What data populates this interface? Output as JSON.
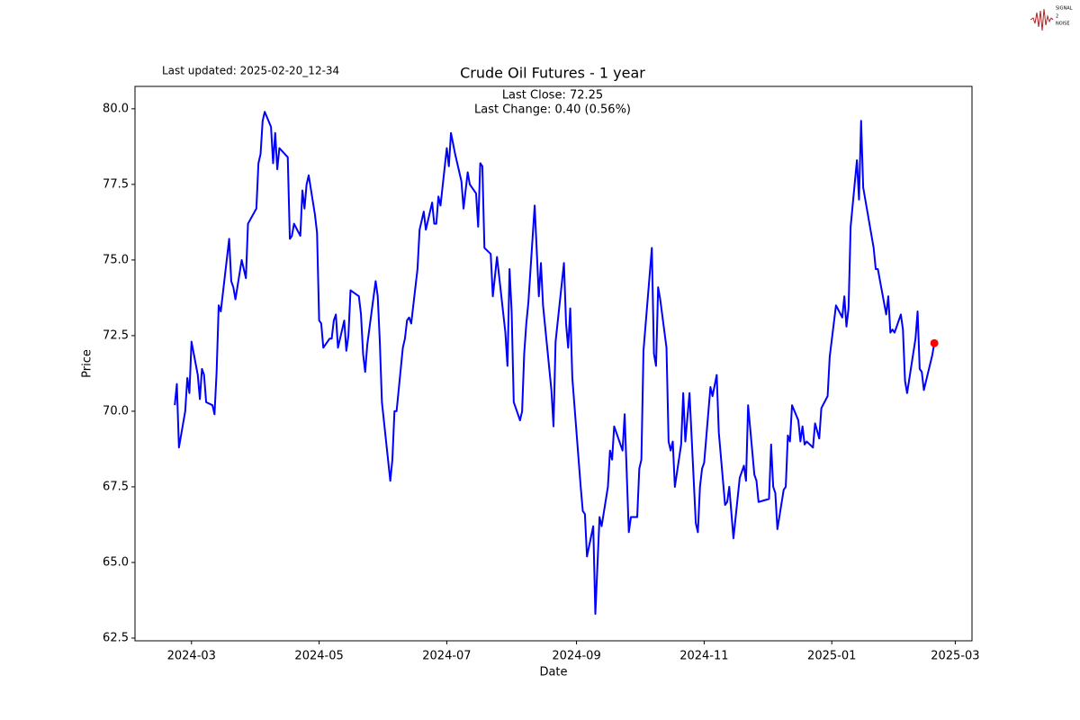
{
  "chart_data": {
    "type": "line",
    "title": "Crude Oil Futures - 1 year",
    "subtitle": "Last updated: 2025-02-20_12-34",
    "annotations": [
      "Last Close: 72.25",
      "Last Change: 0.40 (0.56%)"
    ],
    "x_label": "Date",
    "y_label": "Price",
    "color": "#0000ff",
    "last_point_color": "#ff0000",
    "grid": false,
    "x": [
      "2024-02-22",
      "2024-02-23",
      "2024-02-24",
      "2024-02-27",
      "2024-02-28",
      "2024-02-29",
      "2024-03-01",
      "2024-03-04",
      "2024-03-05",
      "2024-03-06",
      "2024-03-07",
      "2024-03-08",
      "2024-03-11",
      "2024-03-12",
      "2024-03-13",
      "2024-03-14",
      "2024-03-15",
      "2024-03-19",
      "2024-03-20",
      "2024-03-21",
      "2024-03-22",
      "2024-03-25",
      "2024-03-27",
      "2024-03-28",
      "2024-04-01",
      "2024-04-02",
      "2024-04-03",
      "2024-04-04",
      "2024-04-05",
      "2024-04-08",
      "2024-04-09",
      "2024-04-10",
      "2024-04-11",
      "2024-04-12",
      "2024-04-16",
      "2024-04-17",
      "2024-04-18",
      "2024-04-19",
      "2024-04-22",
      "2024-04-23",
      "2024-04-24",
      "2024-04-25",
      "2024-04-26",
      "2024-04-29",
      "2024-04-30",
      "2024-05-01",
      "2024-05-02",
      "2024-05-03",
      "2024-05-06",
      "2024-05-07",
      "2024-05-08",
      "2024-05-09",
      "2024-05-10",
      "2024-05-13",
      "2024-05-14",
      "2024-05-15",
      "2024-05-16",
      "2024-05-20",
      "2024-05-21",
      "2024-05-22",
      "2024-05-23",
      "2024-05-24",
      "2024-05-28",
      "2024-05-29",
      "2024-05-30",
      "2024-05-31",
      "2024-06-04",
      "2024-06-05",
      "2024-06-06",
      "2024-06-07",
      "2024-06-10",
      "2024-06-11",
      "2024-06-12",
      "2024-06-13",
      "2024-06-14",
      "2024-06-17",
      "2024-06-18",
      "2024-06-20",
      "2024-06-21",
      "2024-06-24",
      "2024-06-25",
      "2024-06-26",
      "2024-06-27",
      "2024-06-28",
      "2024-07-01",
      "2024-07-02",
      "2024-07-03",
      "2024-07-05",
      "2024-07-08",
      "2024-07-09",
      "2024-07-10",
      "2024-07-11",
      "2024-07-12",
      "2024-07-15",
      "2024-07-16",
      "2024-07-17",
      "2024-07-18",
      "2024-07-19",
      "2024-07-22",
      "2024-07-23",
      "2024-07-25",
      "2024-07-29",
      "2024-07-30",
      "2024-07-31",
      "2024-08-01",
      "2024-08-02",
      "2024-08-05",
      "2024-08-06",
      "2024-08-07",
      "2024-08-08",
      "2024-08-09",
      "2024-08-12",
      "2024-08-14",
      "2024-08-15",
      "2024-08-16",
      "2024-08-19",
      "2024-08-20",
      "2024-08-21",
      "2024-08-22",
      "2024-08-26",
      "2024-08-27",
      "2024-08-28",
      "2024-08-29",
      "2024-08-30",
      "2024-09-03",
      "2024-09-04",
      "2024-09-05",
      "2024-09-06",
      "2024-09-09",
      "2024-09-10",
      "2024-09-12",
      "2024-09-13",
      "2024-09-16",
      "2024-09-17",
      "2024-09-18",
      "2024-09-19",
      "2024-09-23",
      "2024-09-24",
      "2024-09-26",
      "2024-09-27",
      "2024-09-30",
      "2024-10-01",
      "2024-10-02",
      "2024-10-03",
      "2024-10-07",
      "2024-10-08",
      "2024-10-09",
      "2024-10-10",
      "2024-10-11",
      "2024-10-14",
      "2024-10-15",
      "2024-10-16",
      "2024-10-17",
      "2024-10-18",
      "2024-10-21",
      "2024-10-22",
      "2024-10-23",
      "2024-10-25",
      "2024-10-28",
      "2024-10-29",
      "2024-10-30",
      "2024-10-31",
      "2024-11-01",
      "2024-11-04",
      "2024-11-05",
      "2024-11-07",
      "2024-11-08",
      "2024-11-11",
      "2024-11-12",
      "2024-11-13",
      "2024-11-15",
      "2024-11-18",
      "2024-11-20",
      "2024-11-21",
      "2024-11-22",
      "2024-11-25",
      "2024-11-26",
      "2024-11-27",
      "2024-12-02",
      "2024-12-03",
      "2024-12-04",
      "2024-12-05",
      "2024-12-06",
      "2024-12-09",
      "2024-12-10",
      "2024-12-11",
      "2024-12-12",
      "2024-12-13",
      "2024-12-16",
      "2024-12-17",
      "2024-12-18",
      "2024-12-19",
      "2024-12-20",
      "2024-12-23",
      "2024-12-24",
      "2024-12-26",
      "2024-12-27",
      "2024-12-30",
      "2024-12-31",
      "2025-01-03",
      "2025-01-06",
      "2025-01-07",
      "2025-01-08",
      "2025-01-09",
      "2025-01-10",
      "2025-01-13",
      "2025-01-14",
      "2025-01-15",
      "2025-01-16",
      "2025-01-21",
      "2025-01-22",
      "2025-01-23",
      "2025-01-27",
      "2025-01-28",
      "2025-01-29",
      "2025-01-30",
      "2025-01-31",
      "2025-02-03",
      "2025-02-04",
      "2025-02-05",
      "2025-02-06",
      "2025-02-10",
      "2025-02-11",
      "2025-02-12",
      "2025-02-13",
      "2025-02-14",
      "2025-02-18",
      "2025-02-19"
    ],
    "values": [
      70.2,
      70.9,
      68.8,
      70.0,
      71.1,
      70.6,
      72.3,
      71.2,
      70.4,
      71.4,
      71.2,
      70.3,
      70.2,
      69.9,
      71.3,
      73.5,
      73.3,
      75.7,
      74.3,
      74.1,
      73.7,
      75.0,
      74.4,
      76.2,
      76.7,
      78.2,
      78.5,
      79.6,
      79.9,
      79.4,
      78.2,
      79.2,
      78.0,
      78.7,
      78.4,
      75.7,
      75.8,
      76.2,
      75.8,
      77.3,
      76.7,
      77.5,
      77.8,
      76.5,
      75.9,
      73.0,
      72.9,
      72.1,
      72.4,
      72.4,
      73.0,
      73.2,
      72.1,
      73.0,
      72.0,
      72.5,
      74.0,
      73.8,
      73.2,
      71.9,
      71.3,
      72.2,
      74.3,
      73.8,
      72.3,
      70.3,
      67.7,
      68.4,
      70.0,
      70.0,
      72.1,
      72.4,
      73.0,
      73.1,
      72.9,
      74.7,
      76.0,
      76.6,
      76.0,
      76.9,
      76.2,
      76.2,
      77.1,
      76.8,
      78.7,
      78.1,
      79.2,
      78.5,
      77.6,
      76.7,
      77.3,
      77.9,
      77.5,
      77.2,
      76.1,
      78.2,
      78.1,
      75.4,
      75.2,
      73.8,
      75.1,
      72.6,
      71.5,
      74.7,
      73.3,
      70.3,
      69.7,
      70.0,
      71.9,
      72.9,
      73.6,
      76.8,
      73.8,
      74.9,
      73.5,
      71.4,
      70.7,
      69.5,
      72.3,
      74.9,
      72.9,
      72.1,
      73.4,
      71.1,
      67.5,
      66.7,
      66.6,
      65.2,
      66.2,
      63.3,
      66.5,
      66.2,
      67.5,
      68.7,
      68.4,
      69.5,
      68.7,
      69.9,
      66.0,
      66.5,
      66.5,
      68.1,
      68.4,
      72.0,
      75.4,
      71.9,
      71.5,
      74.1,
      73.7,
      72.1,
      69.0,
      68.7,
      69.0,
      67.5,
      68.9,
      70.6,
      69.0,
      70.6,
      66.3,
      66.0,
      67.5,
      68.1,
      68.3,
      70.8,
      70.5,
      71.2,
      69.3,
      66.9,
      67.0,
      67.5,
      65.8,
      67.8,
      68.2,
      67.7,
      70.2,
      67.9,
      67.7,
      67.0,
      67.1,
      68.9,
      67.5,
      67.3,
      66.1,
      67.4,
      67.5,
      69.2,
      69.0,
      70.2,
      69.7,
      69.0,
      69.5,
      68.9,
      69.0,
      68.8,
      69.6,
      69.1,
      70.1,
      70.5,
      71.8,
      73.5,
      73.1,
      73.8,
      72.8,
      73.4,
      76.1,
      78.3,
      77.0,
      79.6,
      77.4,
      75.4,
      74.7,
      74.7,
      73.2,
      73.8,
      72.6,
      72.7,
      72.6,
      73.2,
      72.7,
      71.0,
      70.6,
      72.4,
      73.3,
      71.4,
      71.3,
      70.7,
      71.85,
      72.25
    ],
    "xlim": [
      "2024-02-03",
      "2025-03-09"
    ],
    "xticks": [
      "2024-03",
      "2024-05",
      "2024-07",
      "2024-09",
      "2024-11",
      "2025-01",
      "2025-03"
    ],
    "ylim": [
      62.41,
      80.74
    ],
    "yticks": [
      62.5,
      {
        "value": 65,
        "label": "65.0"
      },
      67.5,
      {
        "value": 70,
        "label": "70.0"
      },
      72.5,
      {
        "value": 75,
        "label": "75.0"
      },
      77.5,
      {
        "value": 80,
        "label": "80.0"
      }
    ]
  },
  "logo": {
    "lines": [
      "SIGNAL",
      "2",
      "NOISE"
    ]
  }
}
